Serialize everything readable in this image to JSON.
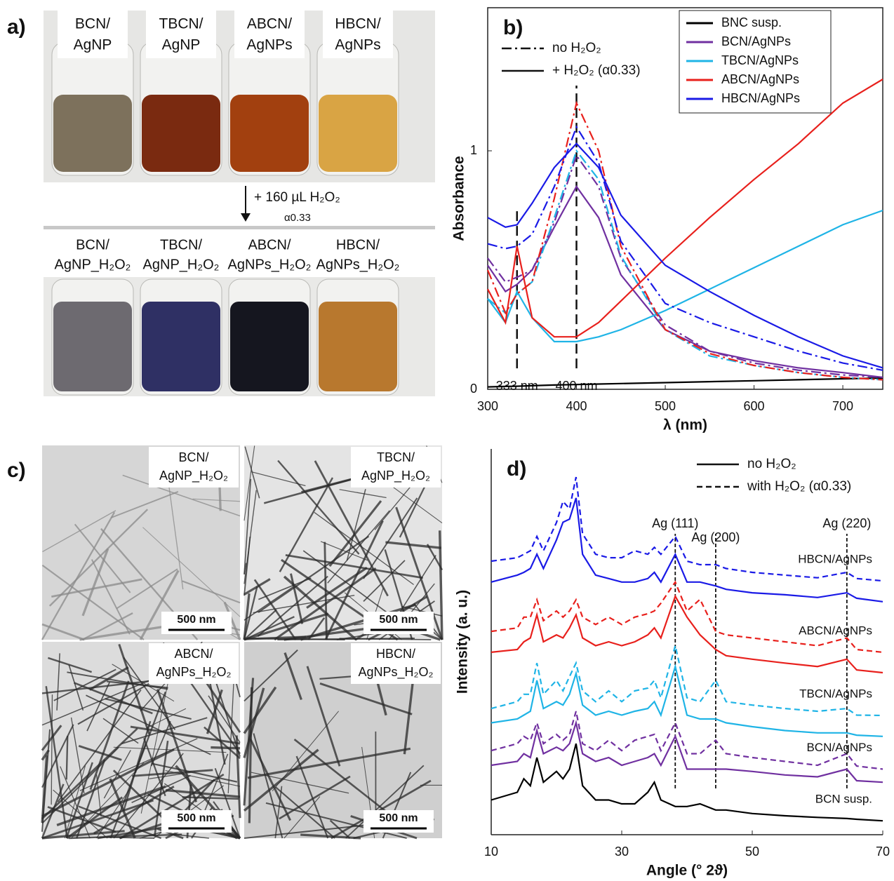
{
  "panels": {
    "a": {
      "label": "a)",
      "before": [
        [
          "BCN/",
          "AgNP"
        ],
        [
          "TBCN/",
          "AgNP"
        ],
        [
          "ABCN/",
          "AgNPs"
        ],
        [
          "HBCN/",
          "AgNPs"
        ]
      ],
      "treatment": "+ 160 µL H₂O₂",
      "treatment_note": "α0.33",
      "after": [
        [
          "BCN/",
          "AgNP_H₂O₂"
        ],
        [
          "TBCN/",
          "AgNP_H₂O₂"
        ],
        [
          "ABCN/",
          "AgNPs_H₂O₂"
        ],
        [
          "HBCN/",
          "AgNPs_H₂O₂"
        ]
      ]
    },
    "c": {
      "label": "c)",
      "images": [
        {
          "lines": [
            "BCN/",
            "AgNP_H₂O₂"
          ],
          "scale": "500 nm"
        },
        {
          "lines": [
            "TBCN/",
            "AgNP_H₂O₂"
          ],
          "scale": "500 nm"
        },
        {
          "lines": [
            "ABCN/",
            "AgNPs_H₂O₂"
          ],
          "scale": "500 nm"
        },
        {
          "lines": [
            "HBCN/",
            "AgNPs_H₂O₂"
          ],
          "scale": "500 nm"
        }
      ]
    }
  },
  "chart_data": [
    {
      "type": "line",
      "label": "b)",
      "xlabel": "λ (nm)",
      "ylabel": "Absorbance",
      "legend": "upper right",
      "x": [
        300,
        320,
        333,
        350,
        375,
        400,
        425,
        450,
        500,
        550,
        600,
        650,
        700,
        745
      ],
      "xlim": [
        300,
        745
      ],
      "xticks": [
        300,
        400,
        500,
        600,
        700
      ],
      "ylim": [
        0,
        1.6
      ],
      "yticks": [
        0,
        1
      ],
      "line_styles": [
        {
          "label": "no H₂O₂",
          "dash": "dashdot"
        },
        {
          "label": "+ H₂O₂ (α0.33)",
          "dash": "solid"
        }
      ],
      "series": [
        {
          "name": "BNC susp.",
          "color": "#000000",
          "style": 1,
          "values": [
            0.01,
            0.012,
            0.013,
            0.015,
            0.018,
            0.02,
            0.022,
            0.024,
            0.028,
            0.032,
            0.036,
            0.04,
            0.044,
            0.047
          ]
        },
        {
          "name": "BCN/AgNPs",
          "color": "#7030a0",
          "style": 1,
          "values": [
            0.52,
            0.41,
            0.44,
            0.5,
            0.68,
            0.85,
            0.72,
            0.48,
            0.25,
            0.16,
            0.12,
            0.09,
            0.07,
            0.05
          ]
        },
        {
          "name": "BCN/AgNPs",
          "color": "#7030a0",
          "style": 0,
          "values": [
            0.55,
            0.45,
            0.47,
            0.5,
            0.7,
            0.98,
            0.85,
            0.55,
            0.27,
            0.16,
            0.11,
            0.08,
            0.06,
            0.05
          ]
        },
        {
          "name": "TBCN/AgNPs",
          "color": "#1fb4e6",
          "style": 1,
          "values": [
            0.38,
            0.28,
            0.41,
            0.3,
            0.2,
            0.2,
            0.22,
            0.25,
            0.33,
            0.42,
            0.51,
            0.6,
            0.69,
            0.75
          ]
        },
        {
          "name": "TBCN/AgNPs",
          "color": "#1fb4e6",
          "style": 0,
          "values": [
            0.38,
            0.32,
            0.4,
            0.45,
            0.72,
            1.0,
            0.88,
            0.56,
            0.25,
            0.14,
            0.1,
            0.07,
            0.05,
            0.04
          ]
        },
        {
          "name": "ABCN/AgNPs",
          "color": "#e8201c",
          "style": 1,
          "values": [
            0.42,
            0.28,
            0.6,
            0.3,
            0.22,
            0.22,
            0.28,
            0.37,
            0.55,
            0.72,
            0.88,
            1.03,
            1.2,
            1.3
          ]
        },
        {
          "name": "ABCN/AgNPs",
          "color": "#e8201c",
          "style": 0,
          "values": [
            0.5,
            0.32,
            0.4,
            0.45,
            0.8,
            1.2,
            1.0,
            0.6,
            0.25,
            0.15,
            0.1,
            0.07,
            0.05,
            0.04
          ]
        },
        {
          "name": "HBCN/AgNPs",
          "color": "#1a1ae6",
          "style": 1,
          "values": [
            0.72,
            0.68,
            0.69,
            0.78,
            0.93,
            1.03,
            0.93,
            0.73,
            0.52,
            0.41,
            0.31,
            0.22,
            0.14,
            0.09
          ]
        },
        {
          "name": "HBCN/AgNPs",
          "color": "#1a1ae6",
          "style": 0,
          "values": [
            0.61,
            0.59,
            0.6,
            0.65,
            0.85,
            1.1,
            0.95,
            0.62,
            0.36,
            0.28,
            0.22,
            0.16,
            0.11,
            0.08
          ]
        }
      ],
      "annotations": [
        {
          "text": "333 nm",
          "x": 333
        },
        {
          "text": "400 nm",
          "x": 400
        }
      ]
    },
    {
      "type": "line",
      "label": "d)",
      "xlabel": "Angle (° 2ϑ)",
      "ylabel": "Intensity (a. u.)",
      "legend": "curve labels",
      "x": [
        10,
        14,
        15,
        16,
        17,
        18,
        20,
        21,
        22,
        23,
        24,
        26,
        28,
        30,
        32,
        34,
        35,
        36,
        38.2,
        40,
        42,
        44.4,
        46,
        50,
        55,
        60,
        64.5,
        66,
        70
      ],
      "xlim": [
        10,
        70
      ],
      "xticks": [
        10,
        30,
        50,
        70
      ],
      "ylim": [
        0,
        100
      ],
      "line_styles": [
        {
          "label": "no H₂O₂",
          "dash": "solid"
        },
        {
          "label": "with H₂O₂ (α0.33)",
          "dash": "dashed"
        }
      ],
      "series": [
        {
          "name": "HBCN/AgNPs",
          "color": "#1a1ae6",
          "style": 0,
          "values": [
            65.5,
            67.3,
            68,
            69,
            72.7,
            69,
            76.4,
            81,
            81.8,
            87.3,
            72.7,
            67.3,
            66.4,
            65.5,
            65.5,
            66.4,
            68,
            65.5,
            72.7,
            65.5,
            65.5,
            64.5,
            63.6,
            62.7,
            62.2,
            61.5,
            62.7,
            61.3,
            60.4
          ]
        },
        {
          "name": "HBCN/AgNPs",
          "color": "#1a1ae6",
          "style": 1,
          "values": [
            70.9,
            71.8,
            72.7,
            73.6,
            77.3,
            73.6,
            80.9,
            86.4,
            84.5,
            92.7,
            78,
            72.7,
            71.8,
            71.8,
            73.6,
            72.7,
            74.5,
            72.7,
            77.3,
            70.9,
            70,
            70,
            69,
            68,
            67.3,
            66.6,
            68,
            66.4,
            65.8
          ]
        },
        {
          "name": "ABCN/AgNPs",
          "color": "#e8201c",
          "style": 0,
          "values": [
            47.3,
            48,
            50,
            51,
            57,
            50,
            51.8,
            51,
            53.6,
            57,
            51,
            49,
            50,
            49,
            50,
            51.8,
            53.6,
            51,
            61.8,
            56.4,
            51.8,
            48,
            46.4,
            45.5,
            44.5,
            43.6,
            45.5,
            42.7,
            42
          ]
        },
        {
          "name": "ABCN/AgNPs",
          "color": "#e8201c",
          "style": 1,
          "values": [
            52.7,
            53.6,
            56.4,
            56.4,
            60.9,
            55.5,
            58,
            56.4,
            58,
            60.9,
            56.4,
            54.5,
            56.4,
            54.5,
            56.4,
            57.3,
            58,
            60,
            65.5,
            58,
            61,
            52.7,
            51.8,
            51,
            50,
            49,
            51,
            48,
            47.3
          ]
        },
        {
          "name": "TBCN/AgNPs",
          "color": "#1fb4e6",
          "style": 0,
          "values": [
            29,
            30,
            31,
            32,
            40,
            32.7,
            34.5,
            33.6,
            36.4,
            41.8,
            33.6,
            31,
            32,
            31,
            32,
            32.7,
            34.5,
            31,
            43.6,
            31,
            30,
            30,
            29,
            28,
            27,
            26.4,
            26.4,
            25.8,
            25.5
          ]
        },
        {
          "name": "TBCN/AgNPs",
          "color": "#1fb4e6",
          "style": 1,
          "values": [
            32.7,
            34.5,
            36.4,
            36.4,
            44.5,
            36.4,
            40,
            37.3,
            41,
            44.5,
            37.3,
            34.5,
            37.3,
            34.5,
            37.3,
            38,
            40,
            35.5,
            49,
            35.5,
            34.5,
            40,
            34.5,
            33.6,
            32.7,
            32,
            32.7,
            31,
            30.9
          ]
        },
        {
          "name": "BCN/AgNPs",
          "color": "#7030a0",
          "style": 0,
          "values": [
            18,
            19,
            21,
            20,
            27,
            21,
            22.7,
            21.8,
            23.6,
            29,
            21,
            19,
            20,
            18,
            19,
            20,
            21,
            18,
            25.5,
            17,
            17,
            17,
            17,
            16.4,
            15.5,
            15,
            17,
            14,
            13.6
          ]
        },
        {
          "name": "BCN/AgNPs",
          "color": "#7030a0",
          "style": 1,
          "values": [
            21.8,
            23.6,
            25.5,
            24.5,
            29,
            23.6,
            26,
            24.5,
            26,
            32,
            23.6,
            21.8,
            24.5,
            21.8,
            24.5,
            25.5,
            26,
            21.8,
            29,
            21,
            21,
            24.5,
            21,
            20,
            19,
            18,
            21,
            17.8,
            17
          ]
        },
        {
          "name": "BCN susp.",
          "color": "#000000",
          "style": 0,
          "values": [
            9,
            11,
            14.5,
            12.7,
            20,
            13.6,
            16.4,
            14.5,
            17,
            23.6,
            12.7,
            9,
            9,
            8,
            8,
            11,
            13.6,
            9,
            7.3,
            7.3,
            8,
            6.4,
            6.4,
            5.5,
            4.9,
            4.5,
            4.2,
            4,
            3.6
          ]
        }
      ],
      "annotations": [
        {
          "text": "Ag (111)",
          "x": 38.2
        },
        {
          "text": "Ag (200)",
          "x": 44.4
        },
        {
          "text": "Ag (220)",
          "x": 64.5
        }
      ]
    }
  ]
}
